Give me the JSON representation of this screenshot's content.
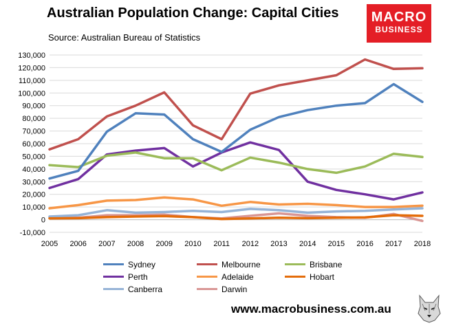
{
  "header": {
    "title": "Australian Population Change: Capital Cities",
    "subtitle": "Source: Australian Bureau of Statistics"
  },
  "logo": {
    "line1": "MACRO",
    "line2": "BUSINESS",
    "color": "#e41e26"
  },
  "footer": {
    "website": "www.macrobusiness.com.au",
    "logo_icon": "wolf-icon"
  },
  "chart_data": {
    "type": "line",
    "x": [
      2005,
      2006,
      2007,
      2008,
      2009,
      2010,
      2011,
      2012,
      2013,
      2014,
      2015,
      2016,
      2017,
      2018
    ],
    "ylim": [
      -10000,
      130000
    ],
    "ytick_step": 10000,
    "ytick_labels": [
      "-10,000",
      "0",
      "10,000",
      "20,000",
      "30,000",
      "40,000",
      "50,000",
      "60,000",
      "70,000",
      "80,000",
      "90,000",
      "100,000",
      "110,000",
      "120,000",
      "130,000"
    ],
    "grid": "horizontal",
    "legend_position": "bottom",
    "series": [
      {
        "name": "Sydney",
        "color": "#4f81bd",
        "values": [
          32500,
          38500,
          69500,
          84000,
          83000,
          63500,
          53500,
          71000,
          81000,
          86500,
          90000,
          92000,
          107000,
          93000
        ]
      },
      {
        "name": "Melbourne",
        "color": "#c0504d",
        "values": [
          55500,
          63500,
          81500,
          90000,
          100500,
          74500,
          63500,
          99500,
          106000,
          110000,
          114000,
          126500,
          119000,
          119500
        ]
      },
      {
        "name": "Brisbane",
        "color": "#9bbb59",
        "values": [
          43000,
          41500,
          50500,
          53000,
          48500,
          48500,
          39000,
          49000,
          45000,
          40000,
          37000,
          42000,
          52000,
          49500
        ]
      },
      {
        "name": "Perth",
        "color": "#7030a0",
        "values": [
          25000,
          32000,
          51500,
          54500,
          56500,
          42000,
          53000,
          61000,
          55000,
          30000,
          23500,
          20000,
          16000,
          21500
        ]
      },
      {
        "name": "Adelaide",
        "color": "#f79646",
        "values": [
          9000,
          11500,
          15000,
          15500,
          17500,
          16000,
          11000,
          14000,
          12000,
          12500,
          11500,
          10000,
          10000,
          11000
        ]
      },
      {
        "name": "Hobart",
        "color": "#e46c0a",
        "values": [
          1000,
          1200,
          2000,
          2500,
          2800,
          2000,
          500,
          1000,
          1500,
          1200,
          1500,
          1800,
          3500,
          3000
        ]
      },
      {
        "name": "Canberra",
        "color": "#95b3d7",
        "values": [
          2500,
          3500,
          7500,
          5500,
          6000,
          7000,
          6000,
          8500,
          7500,
          5500,
          6500,
          7000,
          8000,
          9000
        ]
      },
      {
        "name": "Darwin",
        "color": "#d99694",
        "values": [
          1500,
          1500,
          3500,
          3500,
          4000,
          2000,
          1000,
          3000,
          5000,
          3000,
          2000,
          1500,
          4500,
          -1000
        ]
      }
    ]
  }
}
